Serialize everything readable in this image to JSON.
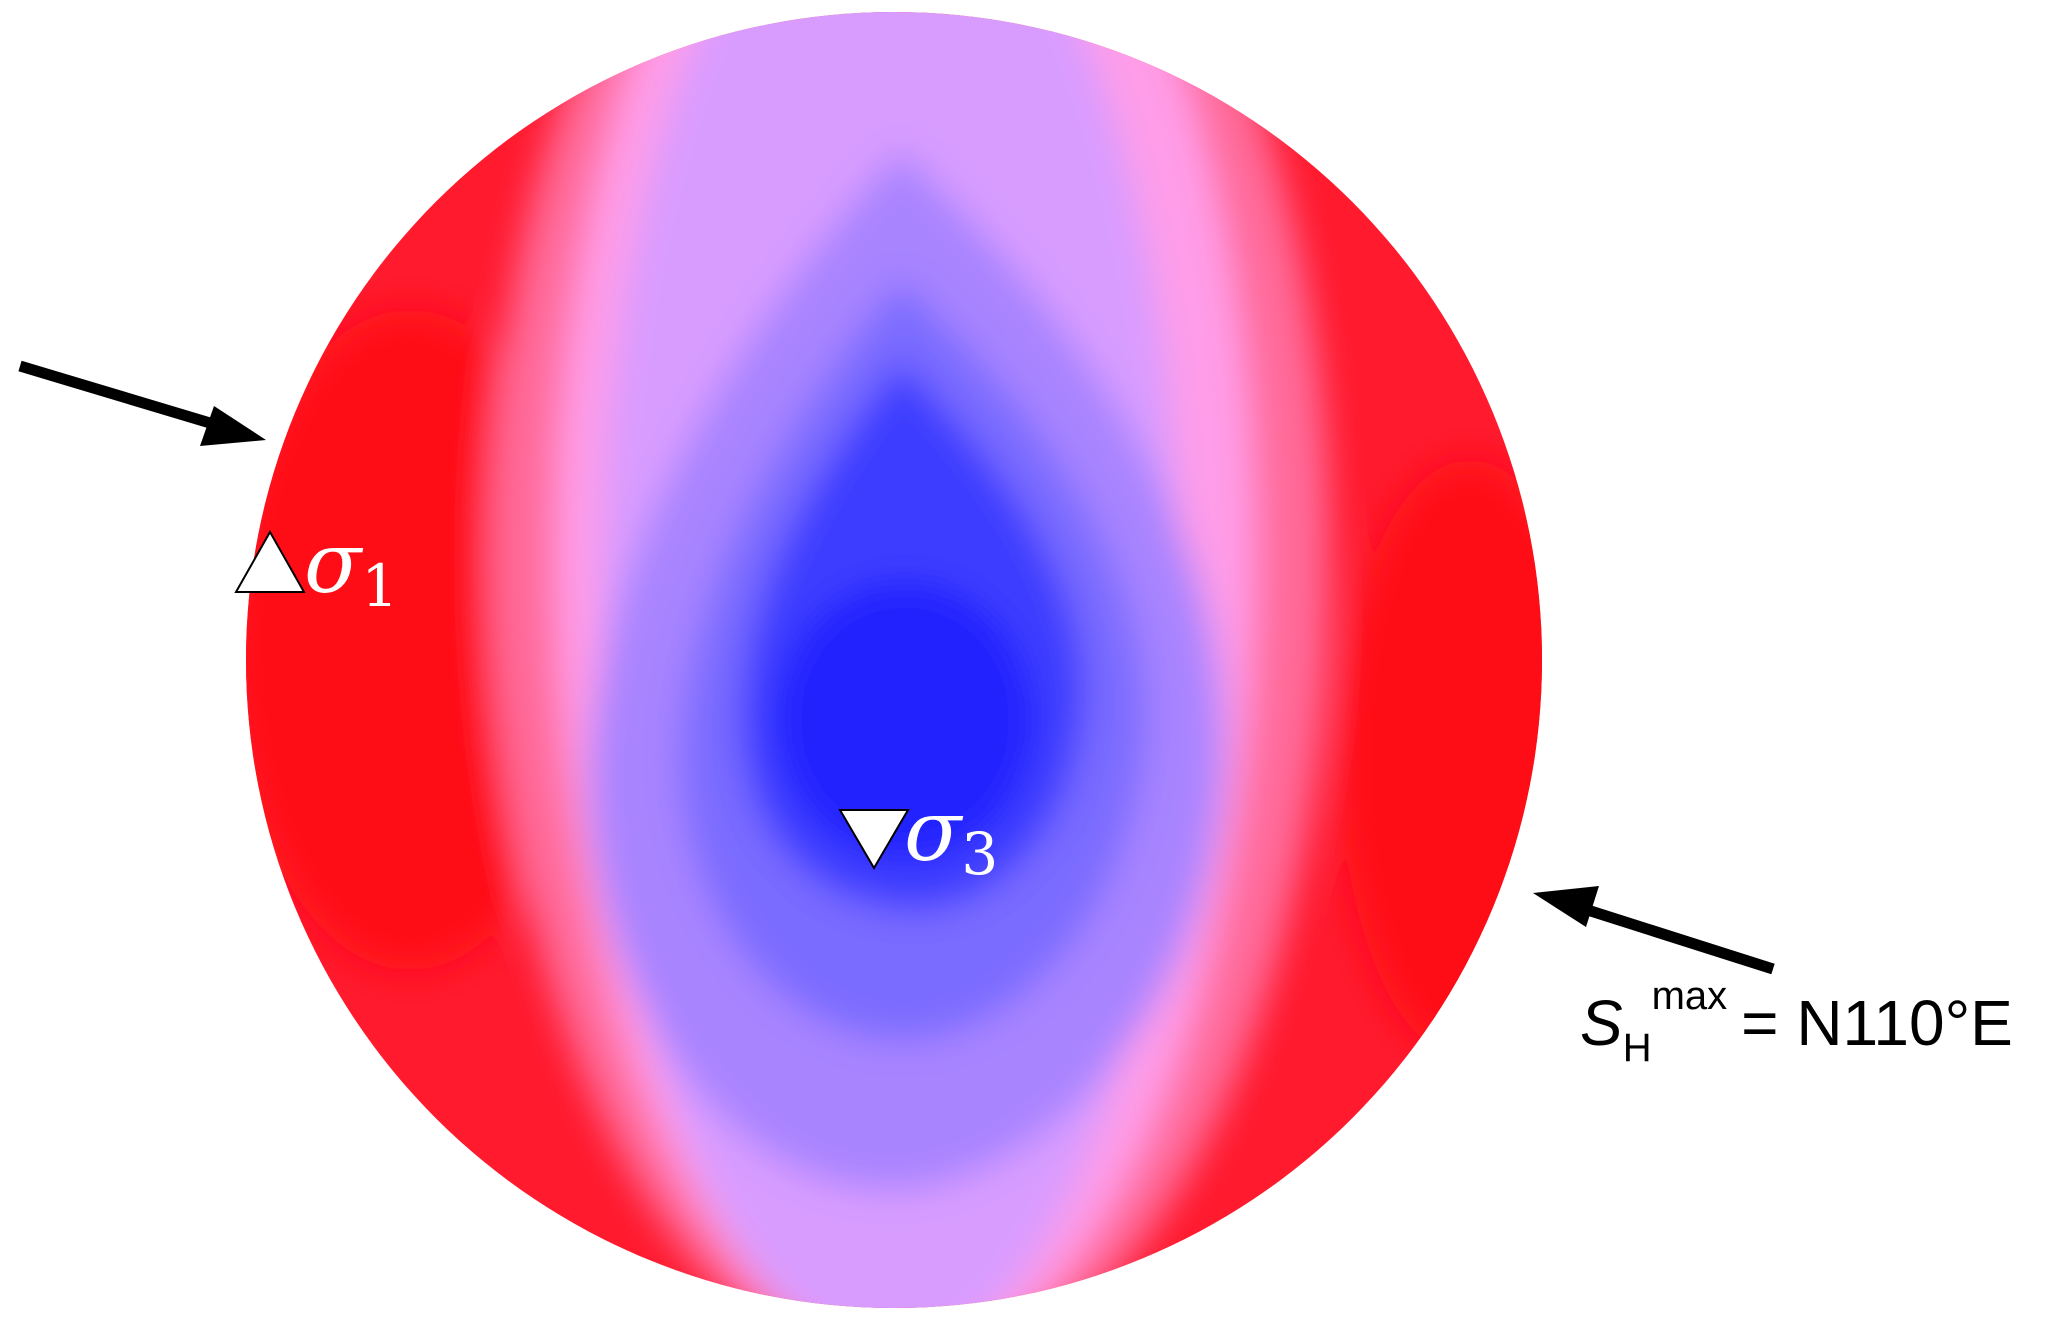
{
  "markers": [
    {
      "symbol": "σ",
      "index": "1"
    },
    {
      "symbol": "σ",
      "index": "3"
    }
  ],
  "annotation": {
    "symbol": "S",
    "subscript": "H",
    "superscript": "max",
    "text": "= N110°E"
  }
}
